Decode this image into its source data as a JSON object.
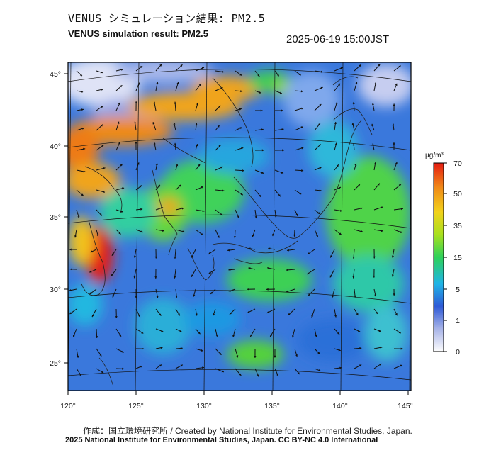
{
  "header": {
    "title_jp": "VENUS シミュレーション結果: PM2.5",
    "title_en": "VENUS simulation result: PM2.5",
    "timestamp": "2025-06-19 15:00JST"
  },
  "map": {
    "lon_labels": [
      "120°",
      "125°",
      "130°",
      "135°",
      "140°",
      "145°"
    ],
    "lat_labels": [
      "45°",
      "40°",
      "35°",
      "30°",
      "25°"
    ]
  },
  "colorbar": {
    "unit_label": "µg/m³",
    "tick_labels": [
      "70",
      "50",
      "35",
      "15",
      "5",
      "1",
      "0"
    ],
    "colors": [
      "#fdfdfd",
      "#a8b4e8",
      "#2e5ad6",
      "#1fb4e6",
      "#2ed15a",
      "#a8e01e",
      "#f2d21a",
      "#f08a18",
      "#e51c12"
    ]
  },
  "footer": {
    "credit": "作成：国立環境研究所 / Created by National Institute for Environmental Studies, Japan.",
    "license": "2025 National Institute for Environmental Studies, Japan. CC BY-NC 4.0 International"
  }
}
